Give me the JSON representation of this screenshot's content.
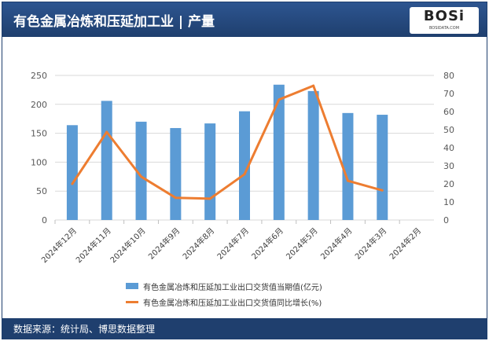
{
  "header": {
    "title": "有色金属冶炼和压延加工业 | 产量",
    "logo_text": "BOSi",
    "logo_sub": "BOSIDATA.COM"
  },
  "footer": {
    "source": "数据来源：统计局、博思数据整理"
  },
  "colors": {
    "bar": "#5b9bd5",
    "line": "#ed7d31",
    "header": "#1f3f6e"
  },
  "chart_data": {
    "type": "bar+line",
    "categories": [
      "2024年12月",
      "2024年11月",
      "2024年10月",
      "2024年9月",
      "2024年8月",
      "2024年7月",
      "2024年6月",
      "2024年5月",
      "2024年4月",
      "2024年3月",
      "2024年2月"
    ],
    "series": [
      {
        "name": "有色金属冶炼和压延加工业出口交货值当期值(亿元)",
        "type": "bar",
        "axis": "left",
        "values": [
          164,
          206,
          170,
          159,
          167,
          188,
          234,
          223,
          185,
          182,
          null
        ]
      },
      {
        "name": "有色金属冶炼和压延加工业出口交货值同比增长(%)",
        "type": "line",
        "axis": "right",
        "values": [
          20,
          48.7,
          24,
          12.3,
          11.8,
          25.3,
          66.6,
          74.3,
          21.7,
          16.4,
          null
        ]
      }
    ],
    "left_axis": {
      "range": [
        0,
        250
      ],
      "ticks": [
        "0",
        "50",
        "100",
        "150",
        "200",
        "250"
      ]
    },
    "right_axis": {
      "range": [
        0,
        80
      ],
      "ticks": [
        "0",
        "10",
        "20",
        "30",
        "40",
        "50",
        "60",
        "70",
        "80"
      ]
    },
    "grid": true,
    "legend": "bottom"
  }
}
